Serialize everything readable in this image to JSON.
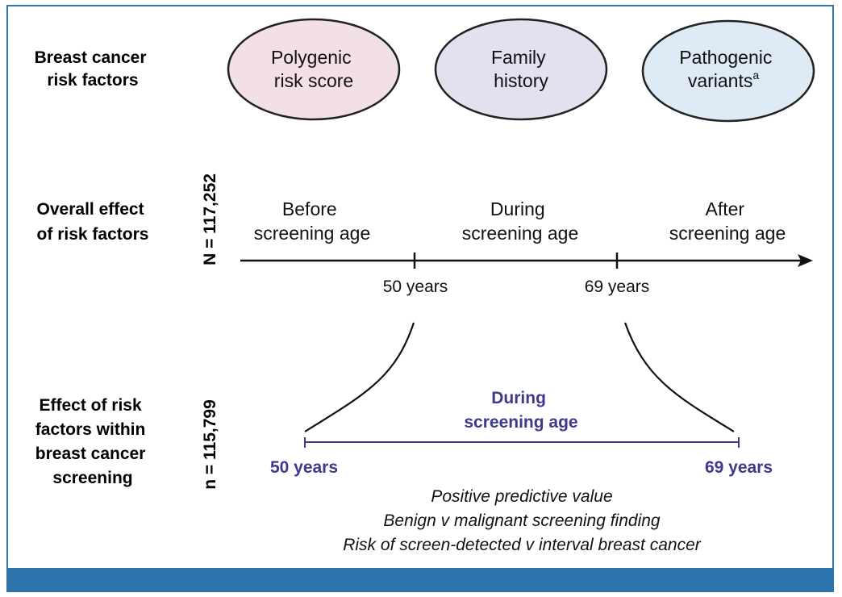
{
  "rows": {
    "risk_factors_label": [
      "Breast cancer",
      "risk factors"
    ],
    "overall_effect_label": [
      "Overall effect",
      "of risk factors"
    ],
    "within_screening_label": [
      "Effect of risk",
      "factors within",
      "breast cancer",
      "screening"
    ]
  },
  "sample_sizes": {
    "overall": "N = 117,252",
    "within": "n = 115,799"
  },
  "risk_factors": [
    {
      "lines": [
        "Polygenic",
        "risk score"
      ],
      "superscript": "",
      "fill": "#f3e0e6"
    },
    {
      "lines": [
        "Family",
        "history"
      ],
      "superscript": "",
      "fill": "#e3e0ef"
    },
    {
      "lines": [
        "Pathogenic",
        "variants"
      ],
      "superscript": "a",
      "fill": "#deebf7"
    }
  ],
  "timeline": {
    "phases": [
      {
        "lines": [
          "Before",
          "screening age"
        ]
      },
      {
        "lines": [
          "During",
          "screening age"
        ]
      },
      {
        "lines": [
          "After",
          "screening age"
        ]
      }
    ],
    "ticks": [
      "50 years",
      "69 years"
    ]
  },
  "screening": {
    "title_lines": [
      "During",
      "screening age"
    ],
    "start_label": "50 years",
    "end_label": "69 years",
    "outcomes": [
      "Positive predictive value",
      "Benign v malignant screening finding",
      "Risk of screen-detected v interval breast cancer"
    ]
  },
  "colors": {
    "frame": "#2e75ad",
    "accent_purple": "#3d3a8c",
    "oval_stroke": "#222222"
  }
}
